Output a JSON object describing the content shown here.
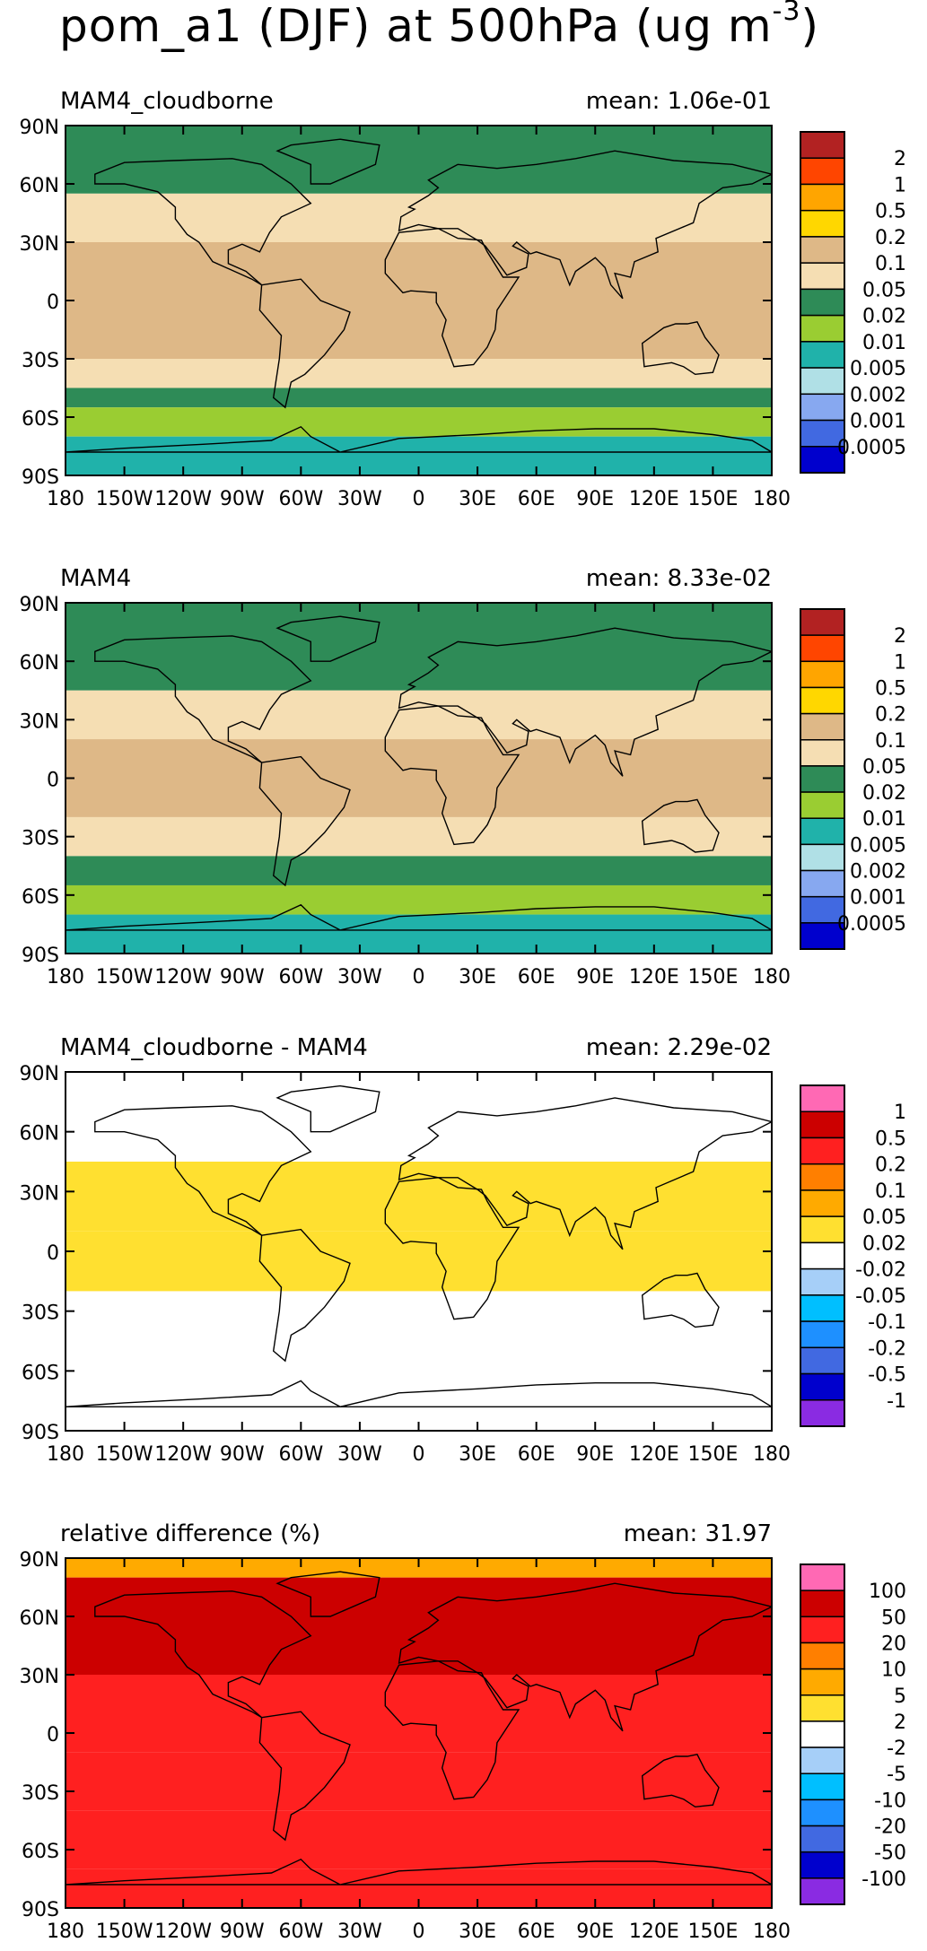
{
  "figure": {
    "title_main": "pom_a1 (DJF) at 500hPa (ug m",
    "title_exp": "-3",
    "title_close": ")"
  },
  "chart_data": [
    {
      "type": "heatmap",
      "title": "MAM4_cloudborne",
      "mean_label": "mean: 1.06e-01",
      "x_ticks": [
        "180",
        "150W",
        "120W",
        "90W",
        "60W",
        "30W",
        "0",
        "30E",
        "60E",
        "90E",
        "120E",
        "150E",
        "180"
      ],
      "y_ticks": [
        "90N",
        "60N",
        "30N",
        "0",
        "30S",
        "60S",
        "90S"
      ],
      "colorbar": {
        "labels": [
          "2",
          "1",
          "0.5",
          "0.2",
          "0.1",
          "0.05",
          "0.02",
          "0.01",
          "0.005",
          "0.002",
          "0.001",
          "0.0005"
        ],
        "colors": [
          "#b22222",
          "#ff4500",
          "#ffa500",
          "#ffd700",
          "#deb887",
          "#f5deb3",
          "#2e8b57",
          "#9acd32",
          "#20b2aa",
          "#b0e0e6",
          "#87a8f0",
          "#4169e1",
          "#0000cd"
        ]
      },
      "field": [
        {
          "lat_min": 55,
          "lat_max": 90,
          "value": 0.03
        },
        {
          "lat_min": 30,
          "lat_max": 55,
          "value": 0.07
        },
        {
          "lat_min": -30,
          "lat_max": 30,
          "value": 0.12
        },
        {
          "lat_min": -45,
          "lat_max": -30,
          "value": 0.06
        },
        {
          "lat_min": -55,
          "lat_max": -45,
          "value": 0.03
        },
        {
          "lat_min": -70,
          "lat_max": -55,
          "value": 0.015
        },
        {
          "lat_min": -90,
          "lat_max": -70,
          "value": 0.008
        }
      ]
    },
    {
      "type": "heatmap",
      "title": "MAM4",
      "mean_label": "mean: 8.33e-02",
      "x_ticks": [
        "180",
        "150W",
        "120W",
        "90W",
        "60W",
        "30W",
        "0",
        "30E",
        "60E",
        "90E",
        "120E",
        "150E",
        "180"
      ],
      "y_ticks": [
        "90N",
        "60N",
        "30N",
        "0",
        "30S",
        "60S",
        "90S"
      ],
      "colorbar": {
        "labels": [
          "2",
          "1",
          "0.5",
          "0.2",
          "0.1",
          "0.05",
          "0.02",
          "0.01",
          "0.005",
          "0.002",
          "0.001",
          "0.0005"
        ],
        "colors": [
          "#b22222",
          "#ff4500",
          "#ffa500",
          "#ffd700",
          "#deb887",
          "#f5deb3",
          "#2e8b57",
          "#9acd32",
          "#20b2aa",
          "#b0e0e6",
          "#87a8f0",
          "#4169e1",
          "#0000cd"
        ]
      },
      "field": [
        {
          "lat_min": 45,
          "lat_max": 90,
          "value": 0.03
        },
        {
          "lat_min": 20,
          "lat_max": 45,
          "value": 0.07
        },
        {
          "lat_min": -20,
          "lat_max": 20,
          "value": 0.12
        },
        {
          "lat_min": -40,
          "lat_max": -20,
          "value": 0.06
        },
        {
          "lat_min": -55,
          "lat_max": -40,
          "value": 0.03
        },
        {
          "lat_min": -70,
          "lat_max": -55,
          "value": 0.015
        },
        {
          "lat_min": -90,
          "lat_max": -70,
          "value": 0.008
        }
      ]
    },
    {
      "type": "heatmap",
      "title": "MAM4_cloudborne - MAM4",
      "mean_label": "mean: 2.29e-02",
      "x_ticks": [
        "180",
        "150W",
        "120W",
        "90W",
        "60W",
        "30W",
        "0",
        "30E",
        "60E",
        "90E",
        "120E",
        "150E",
        "180"
      ],
      "y_ticks": [
        "90N",
        "60N",
        "30N",
        "0",
        "30S",
        "60S",
        "90S"
      ],
      "colorbar": {
        "labels": [
          "1",
          "0.5",
          "0.2",
          "0.1",
          "0.05",
          "0.02",
          "-0.02",
          "-0.05",
          "-0.1",
          "-0.2",
          "-0.5",
          "-1"
        ],
        "colors": [
          "#ff69b4",
          "#cc0000",
          "#ff2020",
          "#ff7f00",
          "#ffaa00",
          "#ffe030",
          "#ffffff",
          "#a6cff8",
          "#00bfff",
          "#1e90ff",
          "#4169e1",
          "#0000cd",
          "#8a2be2"
        ]
      },
      "field": [
        {
          "lat_min": 45,
          "lat_max": 90,
          "value": 0.0
        },
        {
          "lat_min": 10,
          "lat_max": 45,
          "value": 0.04
        },
        {
          "lat_min": -20,
          "lat_max": 10,
          "value": 0.03
        },
        {
          "lat_min": -90,
          "lat_max": -20,
          "value": 0.0
        }
      ]
    },
    {
      "type": "heatmap",
      "title": "relative difference (%)",
      "mean_label": "mean: 31.97",
      "x_ticks": [
        "180",
        "150W",
        "120W",
        "90W",
        "60W",
        "30W",
        "0",
        "30E",
        "60E",
        "90E",
        "120E",
        "150E",
        "180"
      ],
      "y_ticks": [
        "90N",
        "60N",
        "30N",
        "0",
        "30S",
        "60S",
        "90S"
      ],
      "colorbar": {
        "labels": [
          "100",
          "50",
          "20",
          "10",
          "5",
          "2",
          "-2",
          "-5",
          "-10",
          "-20",
          "-50",
          "-100"
        ],
        "colors": [
          "#ff69b4",
          "#cc0000",
          "#ff2020",
          "#ff7f00",
          "#ffaa00",
          "#ffe030",
          "#ffffff",
          "#a6cff8",
          "#00bfff",
          "#1e90ff",
          "#4169e1",
          "#0000cd",
          "#8a2be2"
        ]
      },
      "field": [
        {
          "lat_min": 80,
          "lat_max": 90,
          "value": 5
        },
        {
          "lat_min": 30,
          "lat_max": 80,
          "value": 60
        },
        {
          "lat_min": -10,
          "lat_max": 30,
          "value": 30
        },
        {
          "lat_min": -40,
          "lat_max": -10,
          "value": 25
        },
        {
          "lat_min": -70,
          "lat_max": -40,
          "value": 30
        },
        {
          "lat_min": -90,
          "lat_max": -70,
          "value": 40
        }
      ]
    }
  ]
}
